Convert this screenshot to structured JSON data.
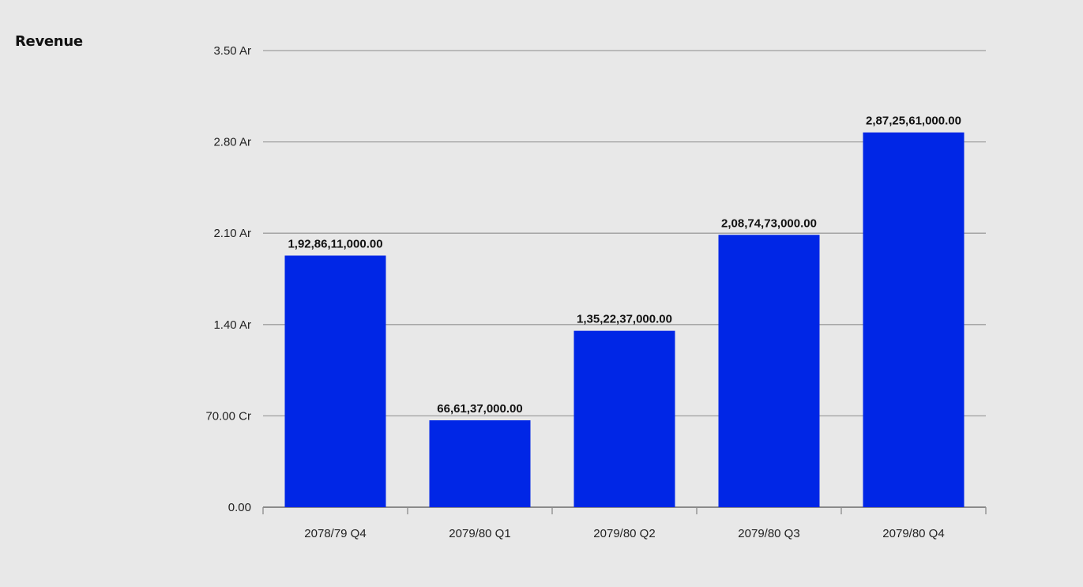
{
  "chart_data": {
    "type": "bar",
    "title": "Revenue",
    "xlabel": "",
    "ylabel": "",
    "categories": [
      "2078/79 Q4",
      "2079/80 Q1",
      "2079/80 Q2",
      "2079/80 Q3",
      "2079/80 Q4"
    ],
    "values": [
      1928611000,
      666137000,
      1352237000,
      2087473000,
      2872561000
    ],
    "value_labels": [
      "1,92,86,11,000.00",
      "66,61,37,000.00",
      "1,35,22,37,000.00",
      "2,08,74,73,000.00",
      "2,87,25,61,000.00"
    ],
    "ylim": [
      0,
      3500000000
    ],
    "yticks": [
      0,
      700000000,
      1400000000,
      2100000000,
      2800000000,
      3500000000
    ],
    "ytick_labels": [
      "0.00",
      "70.00 Cr",
      "1.40 Ar",
      "2.10 Ar",
      "2.80 Ar",
      "3.50 Ar"
    ],
    "grid": true,
    "legend": "none",
    "bar_color": "#0026e6",
    "grid_color": "#9e9e9e",
    "background": "#e8e8e8"
  }
}
